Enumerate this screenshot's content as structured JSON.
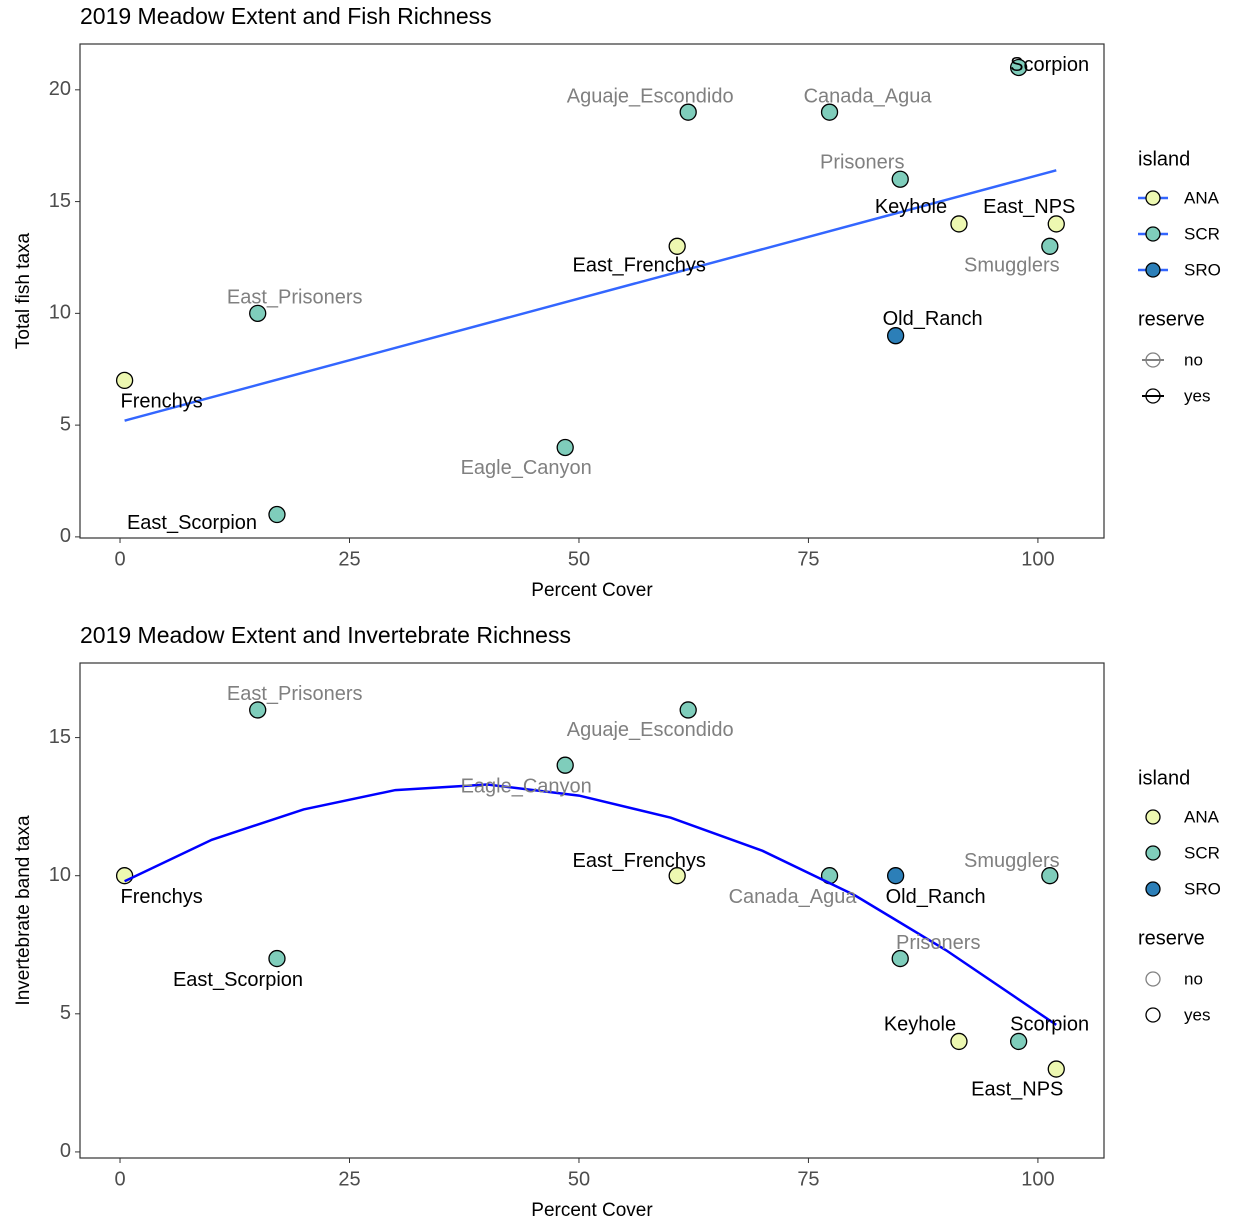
{
  "chart_data": [
    {
      "type": "scatter",
      "title": "2019 Meadow Extent and Fish Richness",
      "x_label": "Percent Cover",
      "y_label": "Total fish taxa",
      "labels": [
        "Frenchys",
        "East_Prisoners",
        "East_Scorpion",
        "Eagle_Canyon",
        "East_Frenchys",
        "Aguaje_Escondido",
        "Canada_Agua",
        "Prisoners",
        "Old_Ranch",
        "Keyhole",
        "Scorpion",
        "Smugglers",
        "East_NPS"
      ],
      "x": [
        0.5,
        15,
        17.1,
        48.5,
        60.7,
        61.9,
        77.3,
        85,
        84.5,
        91.4,
        97.9,
        101.3,
        102
      ],
      "values": [
        7,
        10,
        1,
        4,
        13,
        19,
        19,
        16,
        9,
        14,
        21,
        13,
        14
      ],
      "island": [
        "ANA",
        "SCR",
        "SCR",
        "SCR",
        "ANA",
        "SCR",
        "SCR",
        "SCR",
        "SRO",
        "ANA",
        "SCR",
        "SCR",
        "ANA"
      ],
      "reserve": [
        "yes",
        "no",
        "yes",
        "no",
        "yes",
        "no",
        "no",
        "no",
        "yes",
        "yes",
        "yes",
        "no",
        "yes"
      ],
      "fit": {
        "x": [
          0.5,
          102
        ],
        "values": [
          5.2,
          16.4
        ],
        "color": "#3366ff",
        "in_legend": true
      },
      "xlim": [
        -4.36,
        107.2
      ],
      "xticks": [
        0,
        25,
        50,
        75,
        100
      ],
      "ylim": [
        -0.05,
        22.05
      ],
      "yticks": [
        0,
        5,
        10,
        15,
        20
      ],
      "legend": {
        "island": {
          "title": "island",
          "items": [
            {
              "label": "ANA",
              "color": "#edf8b1"
            },
            {
              "label": "SCR",
              "color": "#7fcdbb"
            },
            {
              "label": "SRO",
              "color": "#2c7fb8"
            }
          ]
        },
        "reserve": {
          "title": "reserve",
          "items": [
            {
              "label": "no",
              "color": "#808080"
            },
            {
              "label": "yes",
              "color": "#000000"
            }
          ]
        }
      }
    },
    {
      "type": "scatter",
      "title": "2019 Meadow Extent and Invertebrate Richness",
      "x_label": "Percent Cover",
      "y_label": "Invertebrate band taxa",
      "labels": [
        "Frenchys",
        "East_Prisoners",
        "East_Scorpion",
        "Eagle_Canyon",
        "East_Frenchys",
        "Aguaje_Escondido",
        "Canada_Agua",
        "Old_Ranch",
        "Prisoners",
        "Keyhole",
        "Scorpion",
        "Smugglers",
        "East_NPS"
      ],
      "x": [
        0.5,
        15,
        17.1,
        48.5,
        60.7,
        61.9,
        77.3,
        84.5,
        85,
        91.4,
        97.9,
        101.3,
        102
      ],
      "values": [
        10,
        16,
        7,
        14,
        10,
        16,
        10,
        10,
        7,
        4,
        4,
        10,
        3
      ],
      "island": [
        "ANA",
        "SCR",
        "SCR",
        "SCR",
        "ANA",
        "SCR",
        "SCR",
        "SRO",
        "SCR",
        "ANA",
        "SCR",
        "SCR",
        "ANA"
      ],
      "reserve": [
        "yes",
        "no",
        "yes",
        "no",
        "yes",
        "no",
        "no",
        "yes",
        "no",
        "yes",
        "yes",
        "no",
        "yes"
      ],
      "fit": {
        "x": [
          0.5,
          10,
          20,
          30,
          40,
          50,
          60,
          70,
          80,
          90,
          102
        ],
        "values": [
          9.8,
          11.3,
          12.4,
          13.1,
          13.3,
          12.9,
          12.1,
          10.9,
          9.3,
          7.3,
          4.6
        ],
        "color": "#0000ff",
        "in_legend": false
      },
      "xlim": [
        -4.36,
        107.2
      ],
      "xticks": [
        0,
        25,
        50,
        75,
        100
      ],
      "ylim": [
        -0.22,
        17.7
      ],
      "yticks": [
        0,
        5,
        10,
        15
      ],
      "legend": {
        "island": {
          "title": "island",
          "items": [
            {
              "label": "ANA",
              "color": "#edf8b1"
            },
            {
              "label": "SCR",
              "color": "#7fcdbb"
            },
            {
              "label": "SRO",
              "color": "#2c7fb8"
            }
          ]
        },
        "reserve": {
          "title": "reserve",
          "items": [
            {
              "label": "no",
              "color": "#808080"
            },
            {
              "label": "yes",
              "color": "#000000"
            }
          ]
        }
      }
    }
  ]
}
